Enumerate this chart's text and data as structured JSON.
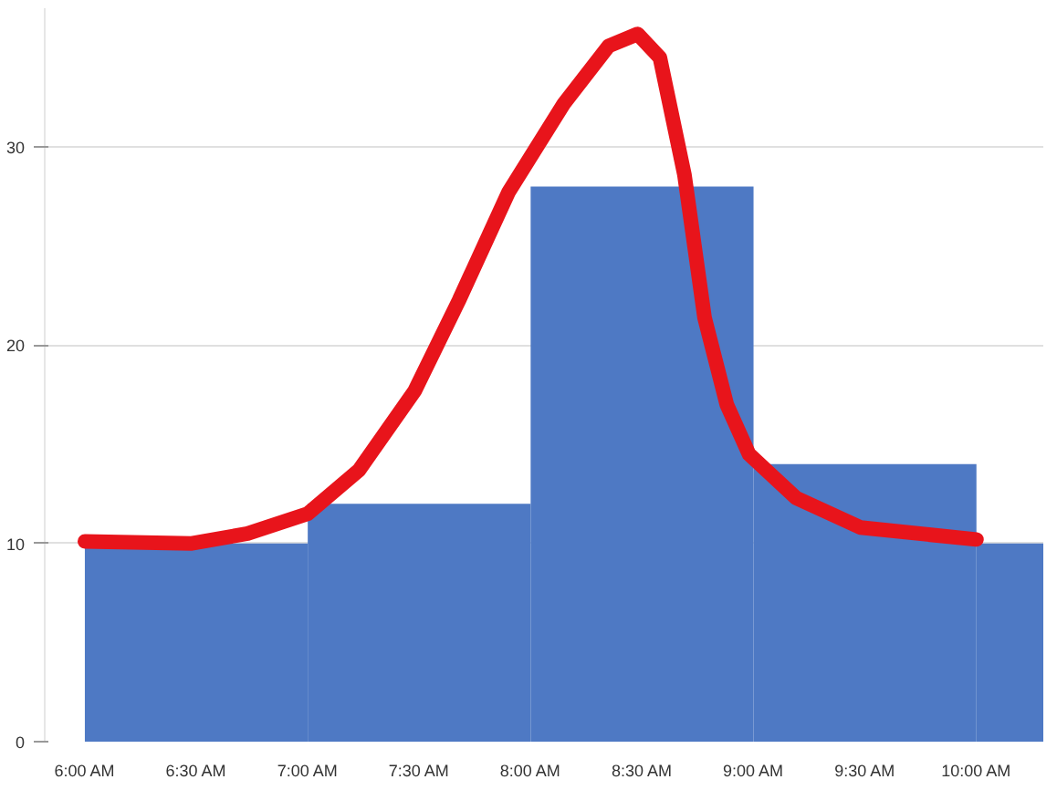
{
  "chart_data": {
    "type": "histogram",
    "bins": [
      6,
      7,
      8,
      9,
      10,
      10.3
    ],
    "values": [
      10,
      12,
      28,
      14,
      10
    ],
    "color": "#4e79c4",
    "series": [
      {
        "type": "line",
        "color": "#e8141b",
        "x": [
          6.0,
          6.48,
          6.73,
          7.0,
          7.23,
          7.48,
          7.68,
          7.9,
          8.15,
          8.35,
          8.48,
          8.58,
          8.69,
          8.78,
          8.88,
          8.98,
          9.19,
          9.48,
          10.0
        ],
        "values": [
          10.1,
          10.0,
          10.5,
          11.5,
          13.7,
          17.7,
          22.3,
          27.7,
          32.2,
          35.1,
          35.7,
          34.5,
          28.6,
          21.4,
          17,
          14.5,
          12.3,
          10.8,
          10.2
        ]
      }
    ],
    "xlim": [
      5.82,
      10.3
    ],
    "ylim": [
      0,
      37
    ],
    "xticks": [
      {
        "value": 6,
        "label": "6:00 AM"
      },
      {
        "value": 6.5,
        "label": "6:30 AM"
      },
      {
        "value": 7,
        "label": "7:00 AM"
      },
      {
        "value": 7.5,
        "label": "7:30 AM"
      },
      {
        "value": 8,
        "label": "8:00 AM"
      },
      {
        "value": 8.5,
        "label": "8:30 AM"
      },
      {
        "value": 9,
        "label": "9:00 AM"
      },
      {
        "value": 9.5,
        "label": "9:30 AM"
      },
      {
        "value": 10,
        "label": "10:00 AM"
      }
    ],
    "yticks": [
      0,
      10,
      20,
      30
    ],
    "grid": "y"
  }
}
